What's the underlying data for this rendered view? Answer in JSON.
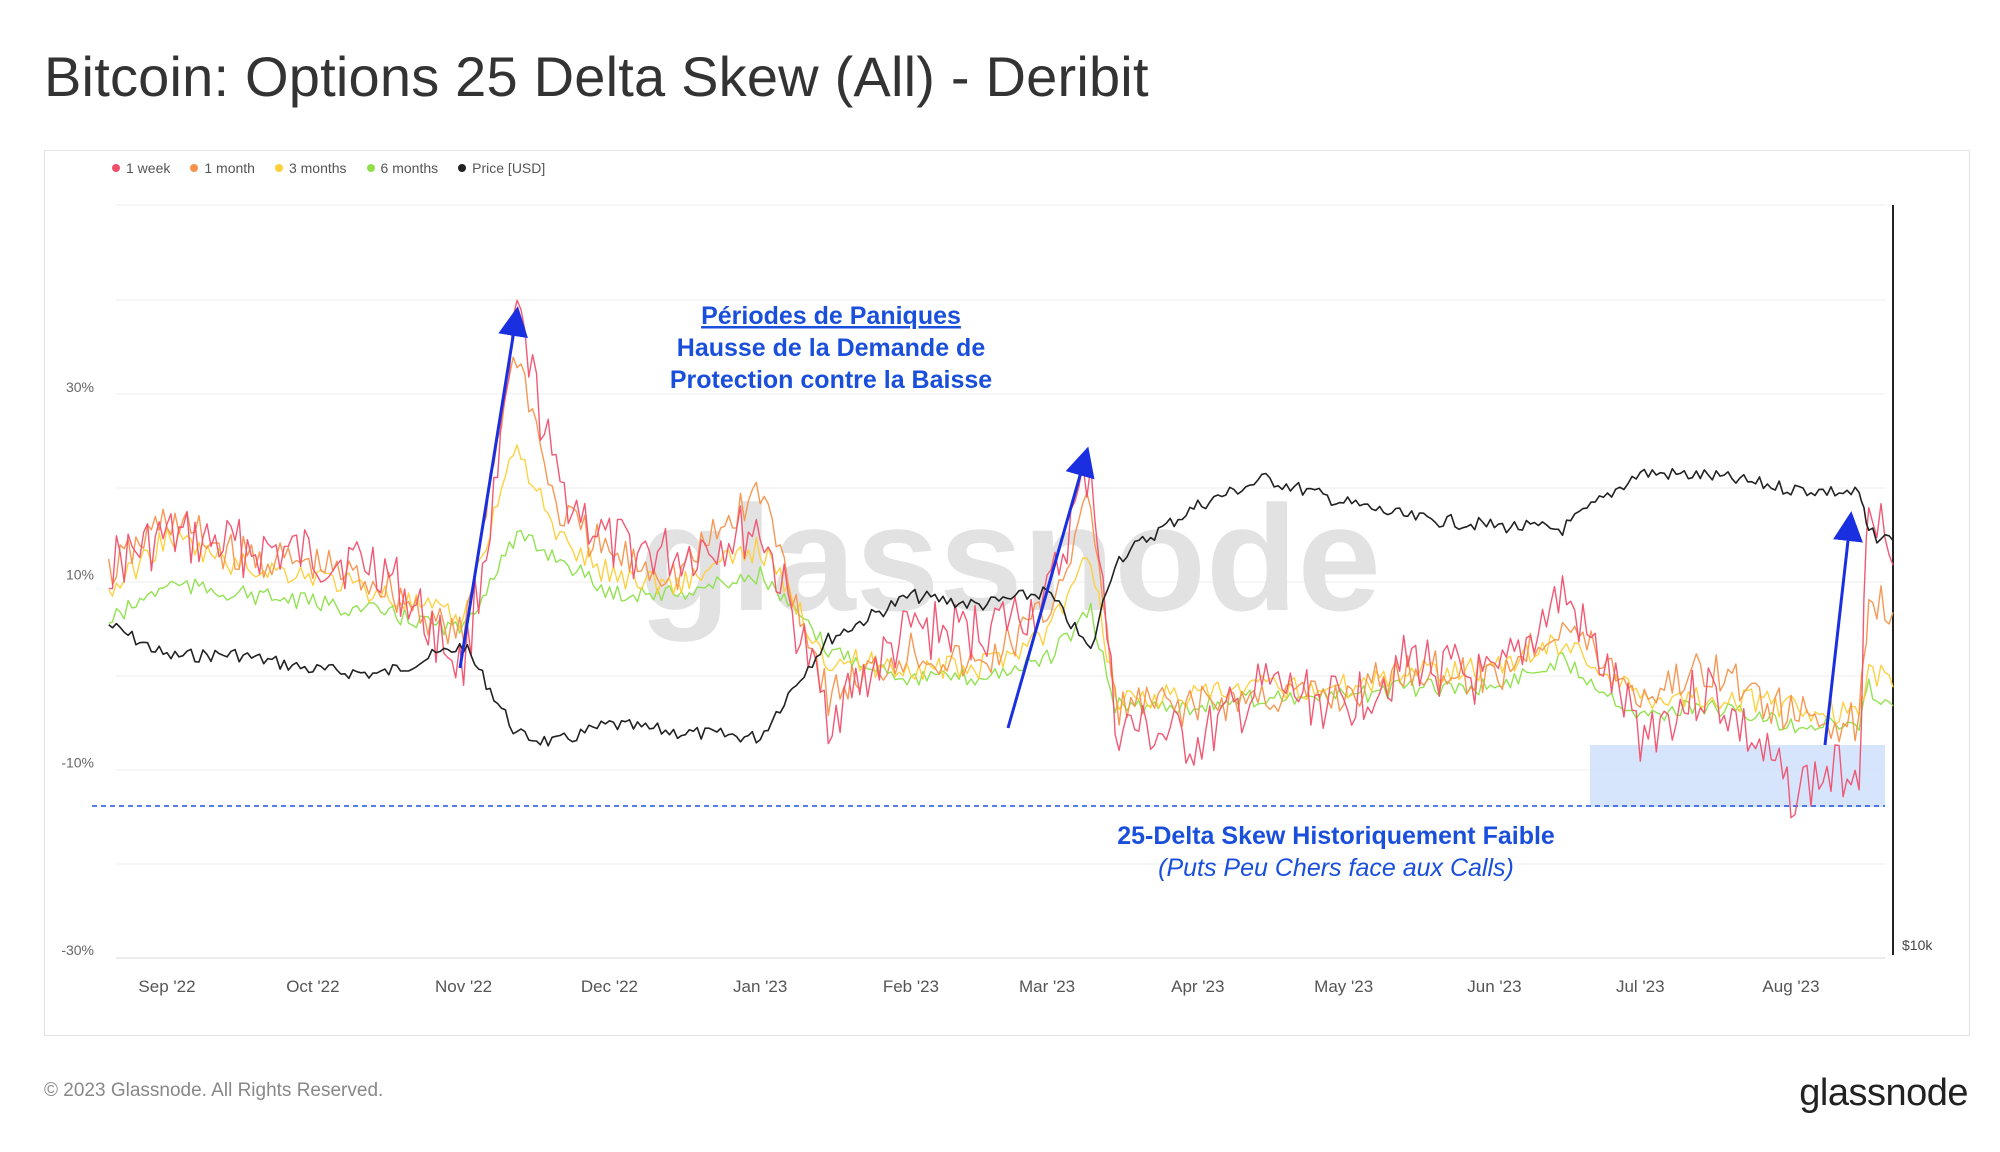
{
  "title": "Bitcoin: Options 25 Delta Skew (All) - Deribit",
  "footer": "© 2023 Glassnode. All Rights Reserved.",
  "brand": "glassnode",
  "watermark": "glassnode",
  "chart_data": {
    "type": "line",
    "title": "Bitcoin: Options 25 Delta Skew (All) - Deribit",
    "grid": true,
    "legend_position": "top-left",
    "x_ticks": [
      "Sep '22",
      "Oct '22",
      "Nov '22",
      "Dec '22",
      "Jan '23",
      "Feb '23",
      "Mar '23",
      "Apr '23",
      "May '23",
      "Jun '23",
      "Jul '23",
      "Aug '23"
    ],
    "x_tick_dates": [
      "2022-09-01",
      "2022-10-01",
      "2022-11-01",
      "2022-12-01",
      "2023-01-01",
      "2023-02-01",
      "2023-03-01",
      "2023-04-01",
      "2023-05-01",
      "2023-06-01",
      "2023-07-01",
      "2023-08-01"
    ],
    "y_left": {
      "ticks": [
        "30%",
        "10%",
        "-10%",
        "-30%"
      ],
      "values": [
        30,
        10,
        -10,
        -30
      ],
      "ylim": [
        -30,
        50
      ]
    },
    "y_right": {
      "ticks": [
        "$10k"
      ],
      "scale": "log"
    },
    "x_dates": [
      "2022-08-20",
      "2022-09-01",
      "2022-09-15",
      "2022-10-01",
      "2022-10-15",
      "2022-11-01",
      "2022-11-08",
      "2022-11-12",
      "2022-11-20",
      "2022-12-01",
      "2022-12-15",
      "2023-01-01",
      "2023-01-15",
      "2023-02-01",
      "2023-02-15",
      "2023-03-01",
      "2023-03-10",
      "2023-03-15",
      "2023-04-01",
      "2023-04-15",
      "2023-05-01",
      "2023-05-15",
      "2023-06-01",
      "2023-06-15",
      "2023-07-01",
      "2023-07-15",
      "2023-08-01",
      "2023-08-15",
      "2023-08-17",
      "2023-08-22"
    ],
    "series": [
      {
        "name": "1 week",
        "color": "#f0506e",
        "values": [
          11,
          14,
          13,
          12,
          11,
          0,
          20,
          38,
          20,
          13,
          12,
          15,
          -5,
          4,
          4,
          7,
          22,
          -6,
          -8,
          -2,
          -4,
          1,
          -2,
          8,
          -7,
          -2,
          -13,
          -10,
          20,
          11
        ]
      },
      {
        "name": "1 month",
        "color": "#f7924c",
        "values": [
          10,
          16,
          12,
          11,
          9,
          3,
          25,
          34,
          17,
          12,
          10,
          19,
          -3,
          2,
          0,
          6,
          18,
          -4,
          -4,
          -3,
          -3,
          0,
          -1,
          5,
          -3,
          0,
          -5,
          -6,
          8,
          6
        ]
      },
      {
        "name": "3 months",
        "color": "#fcd03a",
        "values": [
          8,
          14,
          11,
          10,
          8,
          5,
          18,
          24,
          14,
          10,
          9,
          13,
          1,
          0,
          0,
          4,
          12,
          -3,
          -3,
          -2,
          -2,
          0,
          0,
          3,
          -3,
          -3,
          -4,
          -5,
          0,
          -2
        ]
      },
      {
        "name": "6 months",
        "color": "#8de04a",
        "values": [
          5,
          9,
          8,
          7,
          6,
          4,
          11,
          14,
          12,
          8,
          8,
          10,
          2,
          -1,
          -1,
          1,
          6,
          -4,
          -4,
          -3,
          -3,
          -2,
          -2,
          1,
          -5,
          -4,
          -6,
          -6,
          -2,
          -4
        ]
      },
      {
        "name": "Price [USD]",
        "color": "#222222",
        "values": [
          21500,
          20000,
          20100,
          19400,
          19200,
          20500,
          18000,
          16700,
          16400,
          17100,
          16800,
          16600,
          20800,
          23000,
          22500,
          23200,
          20200,
          24900,
          28300,
          30100,
          28500,
          27500,
          27000,
          26800,
          30500,
          30300,
          29400,
          29100,
          26500,
          26100
        ]
      }
    ]
  },
  "annotations": {
    "panic_title": "Périodes de Paniques",
    "panic_line2": "Hausse de la Demande de",
    "panic_line3": "Protection contre la Baisse",
    "low_line1": "25-Delta Skew Historiquement Faible",
    "low_line2": "(Puts Peu Chers face aux Calls)"
  }
}
